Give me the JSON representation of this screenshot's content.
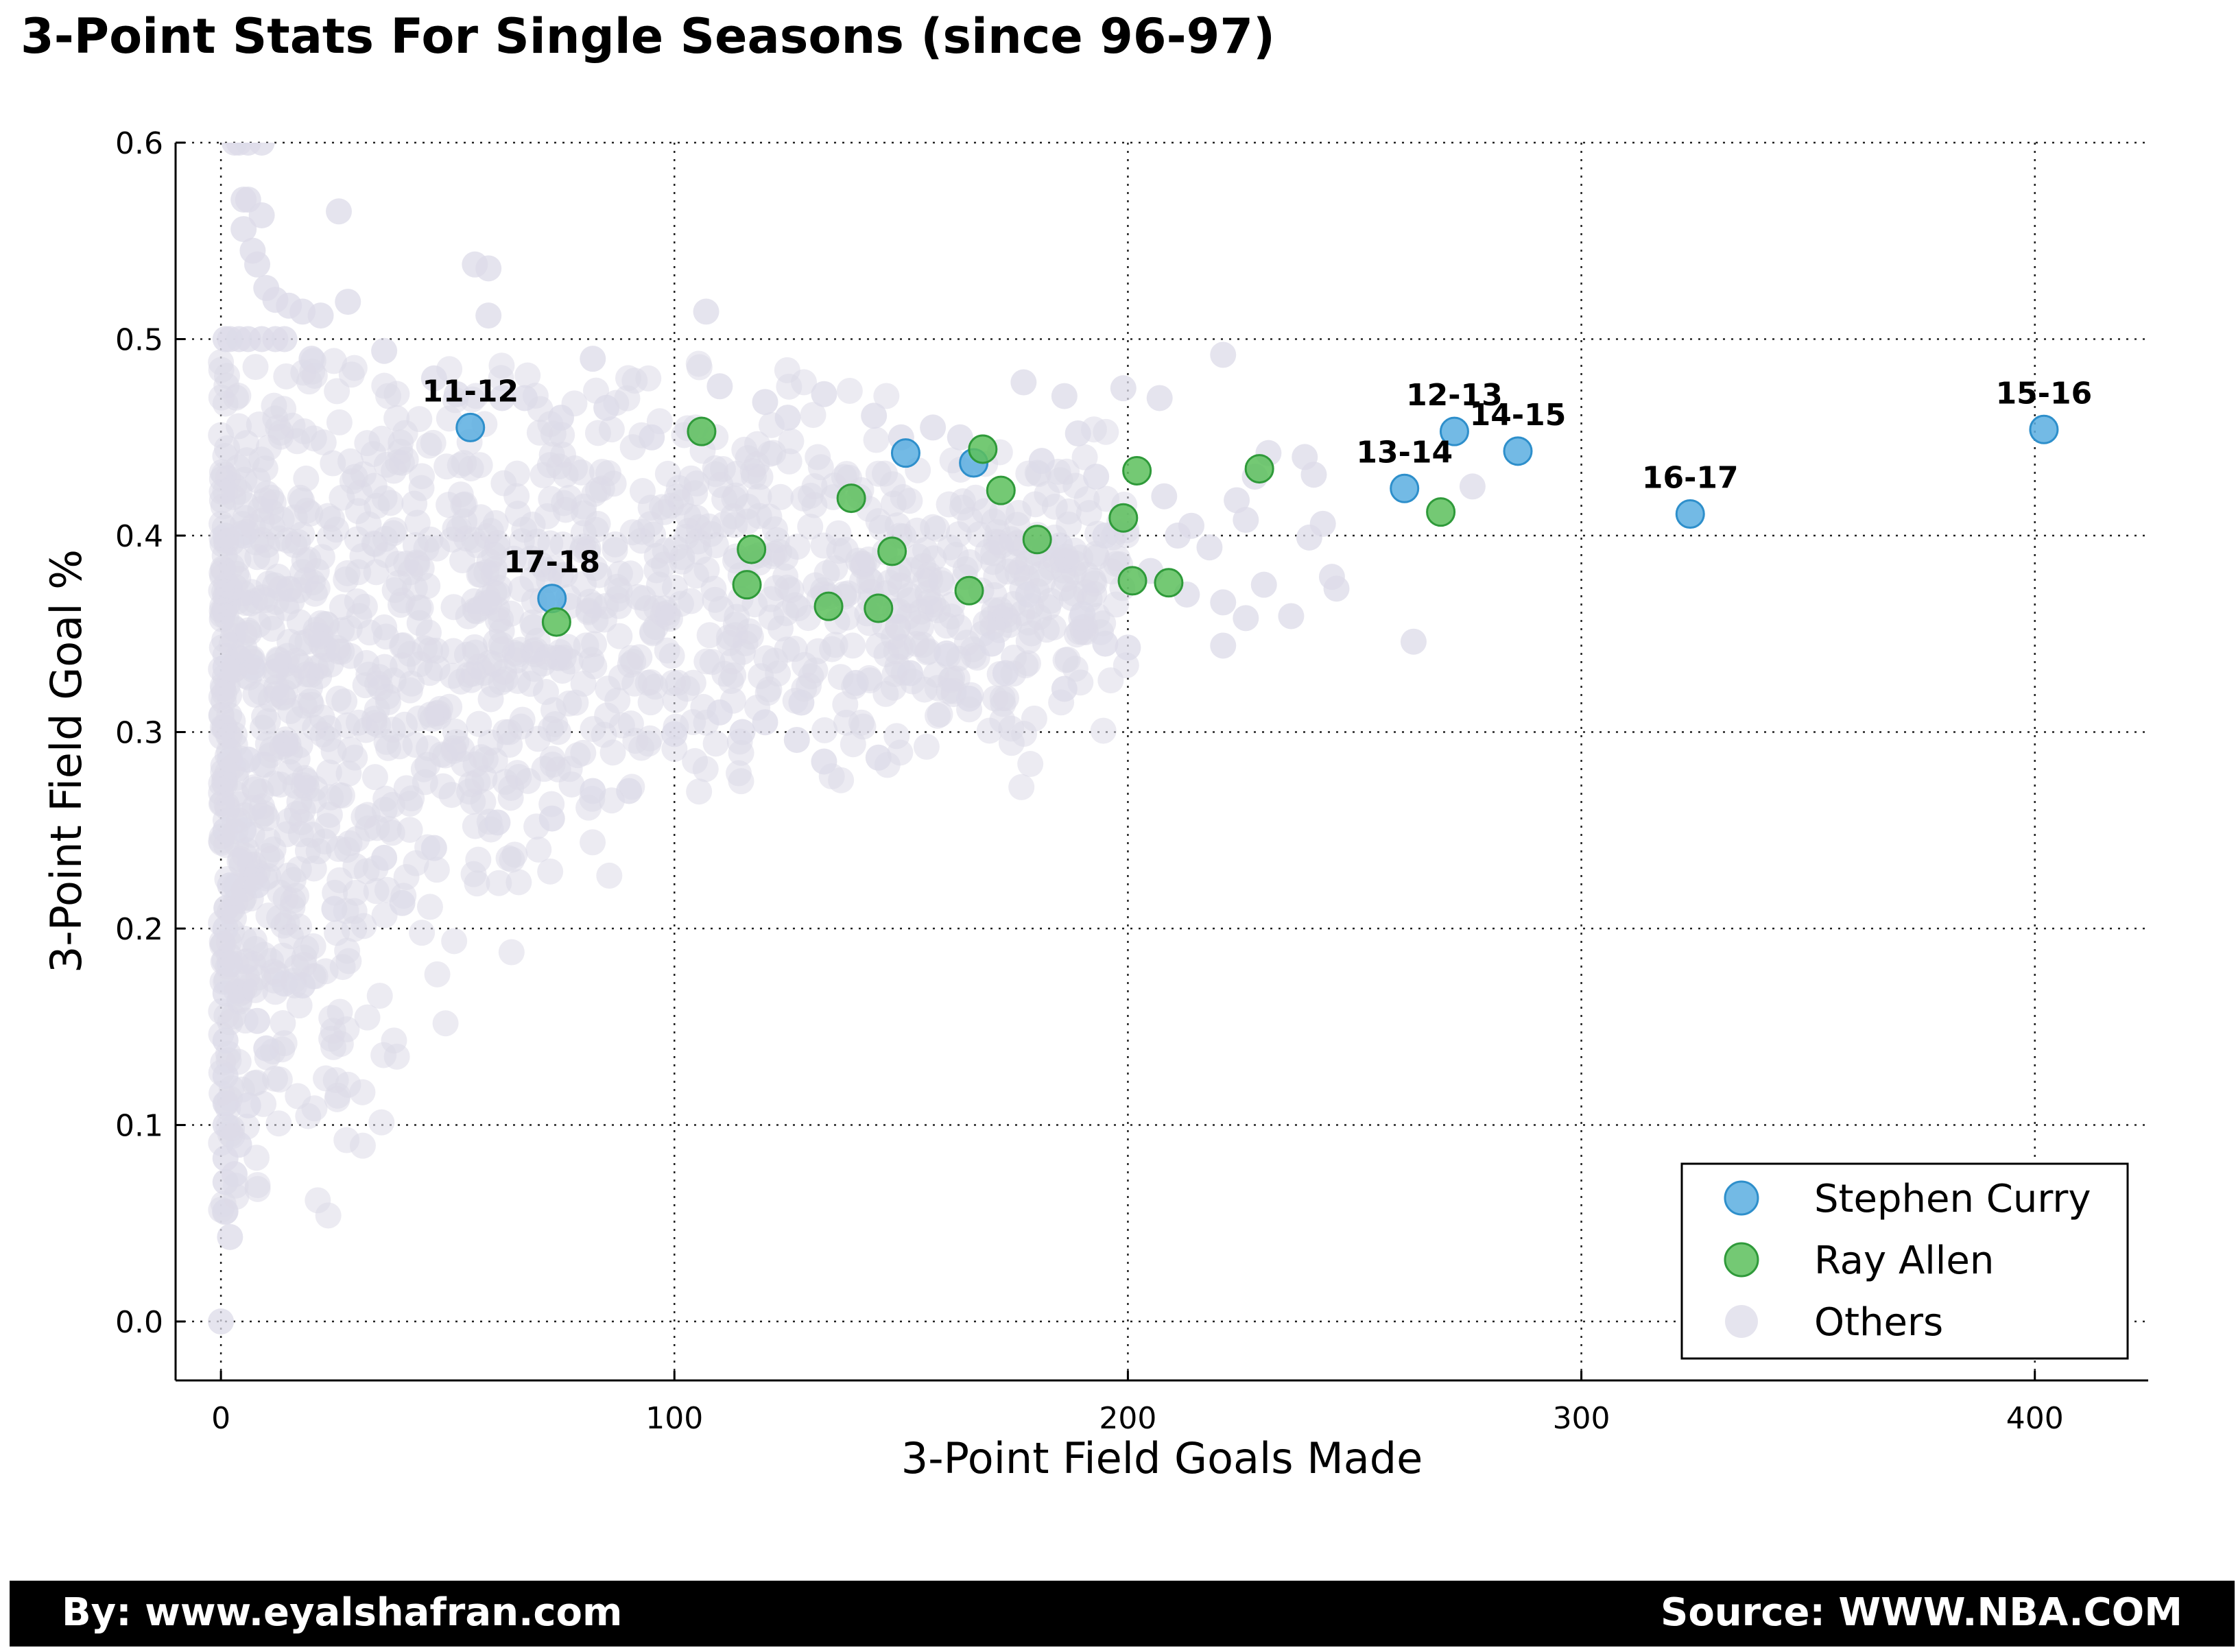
{
  "title": "3-Point Stats For Single Seasons (since 96-97)",
  "footer": {
    "by": "By: www.eyalshafran.com",
    "source": "Source: WWW.NBA.COM"
  },
  "chart_data": {
    "type": "scatter",
    "xlabel": "3-Point Field Goals Made",
    "ylabel": "3-Point Field Goal %",
    "xlim": [
      -10,
      425
    ],
    "ylim": [
      -0.03,
      0.6
    ],
    "xticks": [
      "0",
      "100",
      "200",
      "300",
      "400"
    ],
    "xtick_values": [
      0,
      100,
      200,
      300,
      400
    ],
    "yticks": [
      "0.0",
      "0.1",
      "0.2",
      "0.3",
      "0.4",
      "0.5",
      "0.6"
    ],
    "ytick_values": [
      0.0,
      0.1,
      0.2,
      0.3,
      0.4,
      0.5,
      0.6
    ],
    "grid": true,
    "legend_position": "lower-right",
    "series": [
      {
        "name": "Stephen Curry",
        "color": "#5aaee0",
        "points": [
          {
            "x": 55,
            "y": 0.455,
            "label": "11-12"
          },
          {
            "x": 73,
            "y": 0.368,
            "label": "17-18"
          },
          {
            "x": 151,
            "y": 0.442
          },
          {
            "x": 166,
            "y": 0.437
          },
          {
            "x": 261,
            "y": 0.424,
            "label": "13-14"
          },
          {
            "x": 272,
            "y": 0.453,
            "label": "12-13"
          },
          {
            "x": 286,
            "y": 0.443,
            "label": "14-15"
          },
          {
            "x": 324,
            "y": 0.411,
            "label": "16-17"
          },
          {
            "x": 402,
            "y": 0.454,
            "label": "15-16"
          }
        ]
      },
      {
        "name": "Ray Allen",
        "color": "#5cbf5c",
        "points": [
          {
            "x": 74,
            "y": 0.356
          },
          {
            "x": 106,
            "y": 0.453
          },
          {
            "x": 116,
            "y": 0.375
          },
          {
            "x": 117,
            "y": 0.393
          },
          {
            "x": 134,
            "y": 0.364
          },
          {
            "x": 139,
            "y": 0.419
          },
          {
            "x": 145,
            "y": 0.363
          },
          {
            "x": 148,
            "y": 0.392
          },
          {
            "x": 165,
            "y": 0.372
          },
          {
            "x": 168,
            "y": 0.444
          },
          {
            "x": 172,
            "y": 0.423
          },
          {
            "x": 180,
            "y": 0.398
          },
          {
            "x": 199,
            "y": 0.409
          },
          {
            "x": 201,
            "y": 0.377
          },
          {
            "x": 202,
            "y": 0.433
          },
          {
            "x": 209,
            "y": 0.376
          },
          {
            "x": 229,
            "y": 0.434
          },
          {
            "x": 269,
            "y": 0.412
          }
        ]
      },
      {
        "name": "Others",
        "color": "#dcdbe8",
        "points": [
          {
            "x": 0,
            "y": 0.0
          },
          {
            "x": 1,
            "y": 0.5
          },
          {
            "x": 1,
            "y": 0.333
          },
          {
            "x": 1,
            "y": 0.25
          },
          {
            "x": 1,
            "y": 0.2
          },
          {
            "x": 1,
            "y": 0.167
          },
          {
            "x": 1,
            "y": 0.143
          },
          {
            "x": 1,
            "y": 0.125
          },
          {
            "x": 1,
            "y": 0.111
          },
          {
            "x": 1,
            "y": 0.1
          },
          {
            "x": 1,
            "y": 0.083
          },
          {
            "x": 1,
            "y": 0.071
          },
          {
            "x": 1,
            "y": 0.056
          },
          {
            "x": 2,
            "y": 0.043
          },
          {
            "x": 1,
            "y": 0.4
          },
          {
            "x": 2,
            "y": 0.5
          },
          {
            "x": 2,
            "y": 0.286
          },
          {
            "x": 2,
            "y": 0.222
          },
          {
            "x": 2,
            "y": 0.182
          },
          {
            "x": 3,
            "y": 0.6
          },
          {
            "x": 4,
            "y": 0.6
          },
          {
            "x": 6,
            "y": 0.6
          },
          {
            "x": 9,
            "y": 0.6
          },
          {
            "x": 5,
            "y": 0.571
          },
          {
            "x": 6,
            "y": 0.571
          },
          {
            "x": 5,
            "y": 0.556
          },
          {
            "x": 9,
            "y": 0.563
          },
          {
            "x": 7,
            "y": 0.545
          },
          {
            "x": 8,
            "y": 0.538
          },
          {
            "x": 10,
            "y": 0.526
          },
          {
            "x": 12,
            "y": 0.52
          },
          {
            "x": 15,
            "y": 0.517
          },
          {
            "x": 18,
            "y": 0.514
          },
          {
            "x": 22,
            "y": 0.512
          },
          {
            "x": 28,
            "y": 0.519
          },
          {
            "x": 26,
            "y": 0.565
          },
          {
            "x": 56,
            "y": 0.538
          },
          {
            "x": 59,
            "y": 0.536
          },
          {
            "x": 59,
            "y": 0.512
          },
          {
            "x": 107,
            "y": 0.514
          },
          {
            "x": 4,
            "y": 0.5
          },
          {
            "x": 6,
            "y": 0.5
          },
          {
            "x": 9,
            "y": 0.5
          },
          {
            "x": 12,
            "y": 0.5
          },
          {
            "x": 14,
            "y": 0.5
          },
          {
            "x": 20,
            "y": 0.49
          },
          {
            "x": 36,
            "y": 0.494
          },
          {
            "x": 82,
            "y": 0.49
          },
          {
            "x": 110,
            "y": 0.476
          },
          {
            "x": 221,
            "y": 0.492
          },
          {
            "x": 199,
            "y": 0.475
          },
          {
            "x": 207,
            "y": 0.47
          },
          {
            "x": 177,
            "y": 0.478
          },
          {
            "x": 186,
            "y": 0.471
          },
          {
            "x": 133,
            "y": 0.472
          },
          {
            "x": 120,
            "y": 0.468
          },
          {
            "x": 144,
            "y": 0.461
          },
          {
            "x": 157,
            "y": 0.455
          },
          {
            "x": 189,
            "y": 0.452
          },
          {
            "x": 231,
            "y": 0.442
          },
          {
            "x": 239,
            "y": 0.44
          },
          {
            "x": 241,
            "y": 0.431
          },
          {
            "x": 228,
            "y": 0.43
          },
          {
            "x": 224,
            "y": 0.418
          },
          {
            "x": 243,
            "y": 0.406
          },
          {
            "x": 240,
            "y": 0.399
          },
          {
            "x": 226,
            "y": 0.408
          },
          {
            "x": 245,
            "y": 0.379
          },
          {
            "x": 246,
            "y": 0.373
          },
          {
            "x": 230,
            "y": 0.375
          },
          {
            "x": 236,
            "y": 0.359
          },
          {
            "x": 226,
            "y": 0.358
          },
          {
            "x": 221,
            "y": 0.366
          },
          {
            "x": 221,
            "y": 0.344
          },
          {
            "x": 263,
            "y": 0.346
          },
          {
            "x": 276,
            "y": 0.425
          },
          {
            "x": 211,
            "y": 0.4
          },
          {
            "x": 218,
            "y": 0.394
          },
          {
            "x": 205,
            "y": 0.382
          },
          {
            "x": 213,
            "y": 0.37
          },
          {
            "x": 200,
            "y": 0.343
          },
          {
            "x": 195,
            "y": 0.345
          },
          {
            "x": 186,
            "y": 0.322
          },
          {
            "x": 173,
            "y": 0.33
          },
          {
            "x": 165,
            "y": 0.317
          },
          {
            "x": 145,
            "y": 0.287
          },
          {
            "x": 133,
            "y": 0.285
          },
          {
            "x": 127,
            "y": 0.296
          },
          {
            "x": 115,
            "y": 0.3
          },
          {
            "x": 100,
            "y": 0.299
          },
          {
            "x": 90,
            "y": 0.27
          },
          {
            "x": 82,
            "y": 0.27
          },
          {
            "x": 73,
            "y": 0.256
          },
          {
            "x": 61,
            "y": 0.254
          },
          {
            "x": 47,
            "y": 0.241
          },
          {
            "x": 40,
            "y": 0.213
          },
          {
            "x": 36,
            "y": 0.236
          },
          {
            "x": 25,
            "y": 0.21
          },
          {
            "x": 18,
            "y": 0.171
          },
          {
            "x": 10,
            "y": 0.139
          },
          {
            "x": 8,
            "y": 0.153
          },
          {
            "x": 6,
            "y": 0.11
          },
          {
            "x": 4,
            "y": 0.09
          },
          {
            "x": 3,
            "y": 0.075
          },
          {
            "x": 14,
            "y": 0.172
          },
          {
            "x": 5,
            "y": 0.4
          },
          {
            "x": 7,
            "y": 0.333
          },
          {
            "x": 6,
            "y": 0.286
          },
          {
            "x": 5,
            "y": 0.25
          },
          {
            "x": 8,
            "y": 0.222
          },
          {
            "x": 62,
            "y": 0.47
          },
          {
            "x": 67,
            "y": 0.47
          },
          {
            "x": 75,
            "y": 0.46
          },
          {
            "x": 47,
            "y": 0.48
          },
          {
            "x": 52,
            "y": 0.472
          },
          {
            "x": 85,
            "y": 0.465
          },
          {
            "x": 95,
            "y": 0.45
          },
          {
            "x": 125,
            "y": 0.46
          },
          {
            "x": 150,
            "y": 0.45
          },
          {
            "x": 163,
            "y": 0.45
          },
          {
            "x": 181,
            "y": 0.438
          },
          {
            "x": 193,
            "y": 0.43
          },
          {
            "x": 208,
            "y": 0.42
          },
          {
            "x": 214,
            "y": 0.405
          },
          {
            "x": 195,
            "y": 0.4
          },
          {
            "x": 185,
            "y": 0.395
          },
          {
            "x": 178,
            "y": 0.37
          },
          {
            "x": 190,
            "y": 0.36
          },
          {
            "x": 170,
            "y": 0.345
          },
          {
            "x": 160,
            "y": 0.34
          },
          {
            "x": 152,
            "y": 0.33
          },
          {
            "x": 140,
            "y": 0.325
          },
          {
            "x": 128,
            "y": 0.315
          },
          {
            "x": 120,
            "y": 0.305
          },
          {
            "x": 110,
            "y": 0.31
          }
        ]
      }
    ],
    "annotations": [
      "11-12",
      "17-18",
      "12-13",
      "13-14",
      "14-15",
      "15-16",
      "16-17"
    ]
  }
}
